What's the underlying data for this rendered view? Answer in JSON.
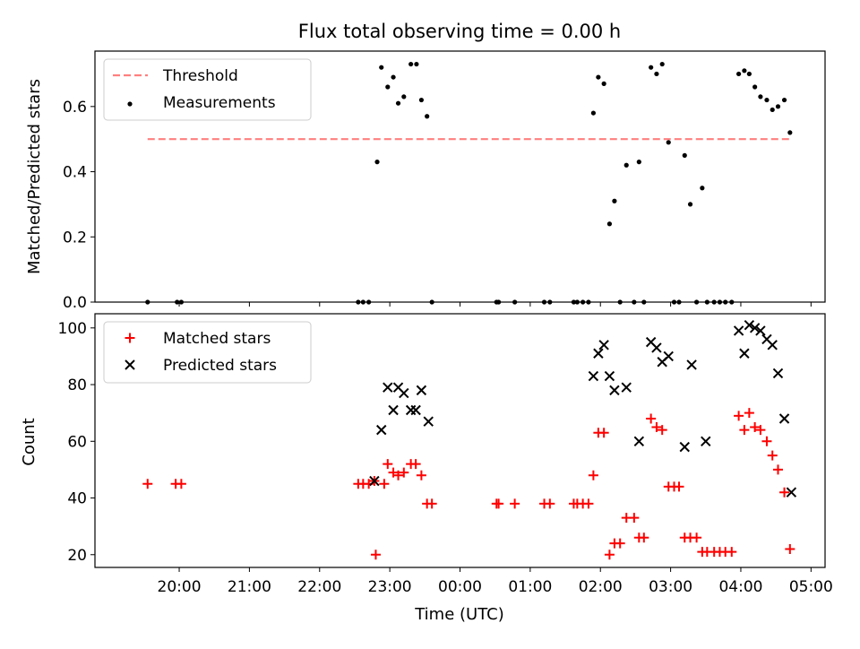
{
  "title": "Flux total observing time = 0.00 h",
  "x_axis": {
    "label": "Time (UTC)",
    "unit": "hours since 20:00 UTC on the first night",
    "ticks": [
      {
        "label": "20:00",
        "value": 0
      },
      {
        "label": "21:00",
        "value": 1
      },
      {
        "label": "22:00",
        "value": 2
      },
      {
        "label": "23:00",
        "value": 3
      },
      {
        "label": "00:00",
        "value": 4
      },
      {
        "label": "01:00",
        "value": 5
      },
      {
        "label": "02:00",
        "value": 6
      },
      {
        "label": "03:00",
        "value": 7
      },
      {
        "label": "04:00",
        "value": 8
      },
      {
        "label": "05:00",
        "value": 9
      }
    ],
    "xlim": [
      -1.2,
      9.2
    ]
  },
  "colors": {
    "threshold": "#ff7f7f",
    "measurements": "#000000",
    "matched": "#ff0000",
    "predicted": "#000000"
  },
  "chart_data": [
    {
      "type": "scatter",
      "ylabel": "Matched/Predicted stars",
      "ylim": [
        0,
        0.77
      ],
      "yticks": [
        {
          "label": "0.0",
          "value": 0
        },
        {
          "label": "0.2",
          "value": 0.2
        },
        {
          "label": "0.4",
          "value": 0.4
        },
        {
          "label": "0.6",
          "value": 0.6
        }
      ],
      "legend": {
        "placement": "upper-left",
        "entries": [
          {
            "label": "Threshold",
            "kind": "dashed-line"
          },
          {
            "label": "Measurements",
            "kind": "dot"
          }
        ]
      },
      "threshold": {
        "name": "Threshold",
        "value": 0.5,
        "x_range": [
          -0.45,
          8.73
        ]
      },
      "series": [
        {
          "name": "Measurements",
          "points": [
            [
              -0.45,
              0
            ],
            [
              -0.03,
              0
            ],
            [
              0.03,
              0
            ],
            [
              2.55,
              0
            ],
            [
              2.62,
              0
            ],
            [
              2.7,
              0
            ],
            [
              2.82,
              0.43
            ],
            [
              2.88,
              0.72
            ],
            [
              2.97,
              0.66
            ],
            [
              3.05,
              0.69
            ],
            [
              3.12,
              0.61
            ],
            [
              3.2,
              0.63
            ],
            [
              3.3,
              0.73
            ],
            [
              3.38,
              0.73
            ],
            [
              3.45,
              0.62
            ],
            [
              3.53,
              0.57
            ],
            [
              3.6,
              0
            ],
            [
              4.52,
              0
            ],
            [
              4.55,
              0
            ],
            [
              4.78,
              0
            ],
            [
              5.2,
              0
            ],
            [
              5.28,
              0
            ],
            [
              5.62,
              0
            ],
            [
              5.67,
              0
            ],
            [
              5.75,
              0
            ],
            [
              5.83,
              0
            ],
            [
              5.9,
              0.58
            ],
            [
              5.97,
              0.69
            ],
            [
              6.05,
              0.67
            ],
            [
              6.13,
              0.24
            ],
            [
              6.2,
              0.31
            ],
            [
              6.28,
              0
            ],
            [
              6.37,
              0.42
            ],
            [
              6.48,
              0
            ],
            [
              6.55,
              0.43
            ],
            [
              6.62,
              0
            ],
            [
              6.72,
              0.72
            ],
            [
              6.8,
              0.7
            ],
            [
              6.88,
              0.73
            ],
            [
              6.97,
              0.49
            ],
            [
              7.05,
              0
            ],
            [
              7.12,
              0
            ],
            [
              7.2,
              0.45
            ],
            [
              7.28,
              0.3
            ],
            [
              7.37,
              0
            ],
            [
              7.45,
              0.35
            ],
            [
              7.52,
              0
            ],
            [
              7.62,
              0
            ],
            [
              7.7,
              0
            ],
            [
              7.78,
              0
            ],
            [
              7.87,
              0
            ],
            [
              7.97,
              0.7
            ],
            [
              8.05,
              0.71
            ],
            [
              8.12,
              0.7
            ],
            [
              8.2,
              0.66
            ],
            [
              8.28,
              0.63
            ],
            [
              8.37,
              0.62
            ],
            [
              8.45,
              0.59
            ],
            [
              8.53,
              0.6
            ],
            [
              8.62,
              0.62
            ],
            [
              8.7,
              0.52
            ]
          ]
        }
      ]
    },
    {
      "type": "scatter",
      "ylabel": "Count",
      "ylim": [
        15.5,
        105
      ],
      "yticks": [
        {
          "label": "20",
          "value": 20
        },
        {
          "label": "40",
          "value": 40
        },
        {
          "label": "60",
          "value": 60
        },
        {
          "label": "80",
          "value": 80
        },
        {
          "label": "100",
          "value": 100
        }
      ],
      "legend": {
        "placement": "upper-left",
        "entries": [
          {
            "label": "Matched stars",
            "kind": "plus"
          },
          {
            "label": "Predicted stars",
            "kind": "x"
          }
        ]
      },
      "series": [
        {
          "name": "Matched stars",
          "points": [
            [
              -0.45,
              45
            ],
            [
              -0.05,
              45
            ],
            [
              0.03,
              45
            ],
            [
              2.55,
              45
            ],
            [
              2.62,
              45
            ],
            [
              2.7,
              45
            ],
            [
              2.78,
              46
            ],
            [
              2.8,
              20
            ],
            [
              2.92,
              45
            ],
            [
              2.97,
              52
            ],
            [
              3.05,
              49
            ],
            [
              3.12,
              48
            ],
            [
              3.2,
              49
            ],
            [
              3.3,
              52
            ],
            [
              3.37,
              52
            ],
            [
              3.45,
              48
            ],
            [
              3.53,
              38
            ],
            [
              3.6,
              38
            ],
            [
              4.52,
              38
            ],
            [
              4.55,
              38
            ],
            [
              4.78,
              38
            ],
            [
              5.2,
              38
            ],
            [
              5.28,
              38
            ],
            [
              5.62,
              38
            ],
            [
              5.67,
              38
            ],
            [
              5.75,
              38
            ],
            [
              5.83,
              38
            ],
            [
              5.9,
              48
            ],
            [
              5.97,
              63
            ],
            [
              6.05,
              63
            ],
            [
              6.13,
              20
            ],
            [
              6.2,
              24
            ],
            [
              6.28,
              24
            ],
            [
              6.37,
              33
            ],
            [
              6.48,
              33
            ],
            [
              6.55,
              26
            ],
            [
              6.62,
              26
            ],
            [
              6.72,
              68
            ],
            [
              6.8,
              65
            ],
            [
              6.88,
              64
            ],
            [
              6.97,
              44
            ],
            [
              7.05,
              44
            ],
            [
              7.12,
              44
            ],
            [
              7.2,
              26
            ],
            [
              7.28,
              26
            ],
            [
              7.37,
              26
            ],
            [
              7.45,
              21
            ],
            [
              7.52,
              21
            ],
            [
              7.62,
              21
            ],
            [
              7.7,
              21
            ],
            [
              7.78,
              21
            ],
            [
              7.87,
              21
            ],
            [
              7.97,
              69
            ],
            [
              8.05,
              64
            ],
            [
              8.12,
              70
            ],
            [
              8.2,
              65
            ],
            [
              8.28,
              64
            ],
            [
              8.37,
              60
            ],
            [
              8.45,
              55
            ],
            [
              8.53,
              50
            ],
            [
              8.62,
              42
            ],
            [
              8.7,
              22
            ]
          ]
        },
        {
          "name": "Predicted stars",
          "points": [
            [
              2.78,
              46
            ],
            [
              2.88,
              64
            ],
            [
              2.97,
              79
            ],
            [
              3.05,
              71
            ],
            [
              3.12,
              79
            ],
            [
              3.2,
              77
            ],
            [
              3.3,
              71
            ],
            [
              3.37,
              71
            ],
            [
              3.45,
              78
            ],
            [
              3.55,
              67
            ],
            [
              5.9,
              83
            ],
            [
              5.97,
              91
            ],
            [
              6.05,
              94
            ],
            [
              6.13,
              83
            ],
            [
              6.2,
              78
            ],
            [
              6.37,
              79
            ],
            [
              6.55,
              60
            ],
            [
              6.72,
              95
            ],
            [
              6.8,
              93
            ],
            [
              6.88,
              88
            ],
            [
              6.97,
              90
            ],
            [
              7.2,
              58
            ],
            [
              7.3,
              87
            ],
            [
              7.5,
              60
            ],
            [
              7.97,
              99
            ],
            [
              8.05,
              91
            ],
            [
              8.12,
              101
            ],
            [
              8.2,
              100
            ],
            [
              8.28,
              99
            ],
            [
              8.37,
              96
            ],
            [
              8.45,
              94
            ],
            [
              8.53,
              84
            ],
            [
              8.62,
              68
            ],
            [
              8.72,
              42
            ]
          ]
        }
      ]
    }
  ]
}
